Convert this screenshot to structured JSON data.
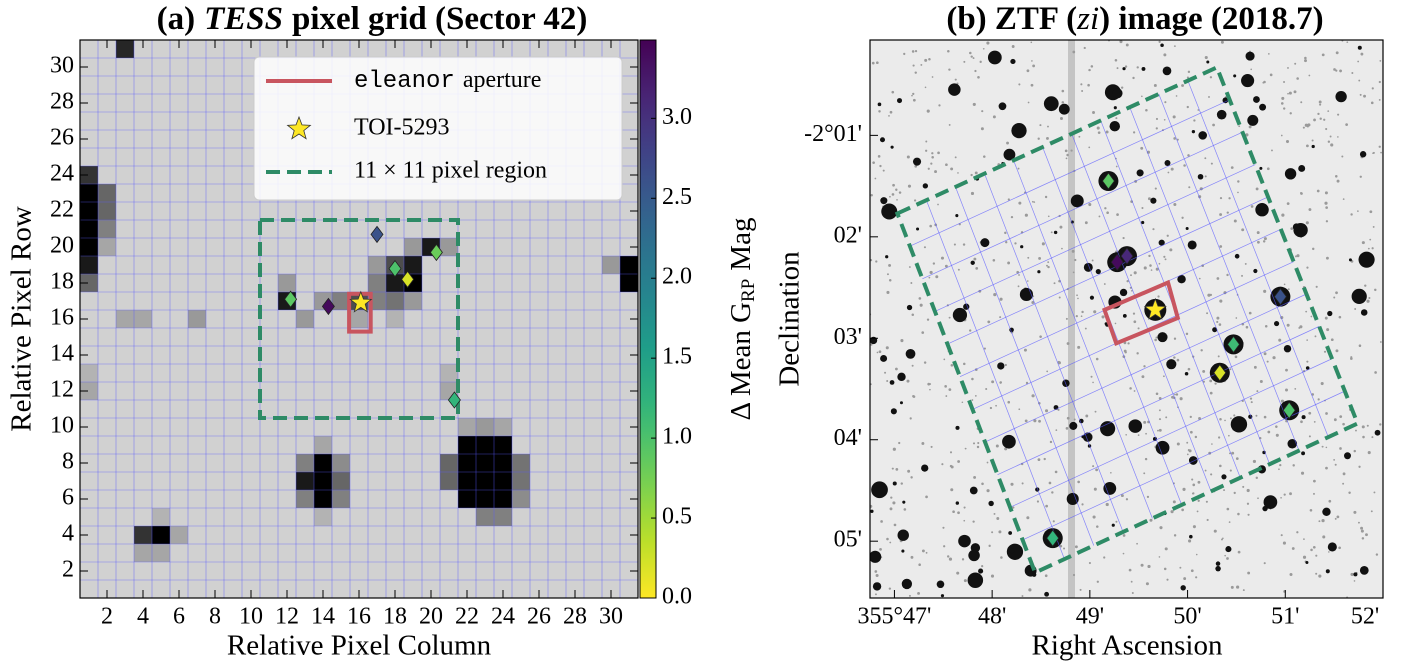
{
  "chart_data": [
    {
      "type": "heatmap",
      "title": [
        "(a)",
        "TESS",
        "pixel grid (Sector 42)"
      ],
      "xlabel": "Relative Pixel Column",
      "ylabel": "Relative Pixel Row",
      "xlim": [
        0.5,
        31.5
      ],
      "ylim": [
        0.5,
        31.5
      ],
      "xticks": [
        2,
        4,
        6,
        8,
        10,
        12,
        14,
        16,
        18,
        20,
        22,
        24,
        26,
        28,
        30
      ],
      "yticks": [
        2,
        4,
        6,
        8,
        10,
        12,
        14,
        16,
        18,
        20,
        22,
        24,
        26,
        28,
        30
      ],
      "grid": true,
      "background": 0.18,
      "vlim": [
        0,
        1
      ],
      "pixels": [
        {
          "col": 3,
          "row": 31,
          "value": 0.85
        },
        {
          "col": 1,
          "row": 24,
          "value": 0.8
        },
        {
          "col": 1,
          "row": 23,
          "value": 1
        },
        {
          "col": 1,
          "row": 22,
          "value": 1
        },
        {
          "col": 1,
          "row": 21,
          "value": 1
        },
        {
          "col": 1,
          "row": 20,
          "value": 1
        },
        {
          "col": 1,
          "row": 19,
          "value": 0.9
        },
        {
          "col": 1,
          "row": 18,
          "value": 0.6
        },
        {
          "col": 2,
          "row": 23,
          "value": 0.6
        },
        {
          "col": 2,
          "row": 22,
          "value": 0.6
        },
        {
          "col": 2,
          "row": 21,
          "value": 0.5
        },
        {
          "col": 2,
          "row": 20,
          "value": 0.35
        },
        {
          "col": 4,
          "row": 4,
          "value": 0.8
        },
        {
          "col": 5,
          "row": 4,
          "value": 1
        },
        {
          "col": 4,
          "row": 3,
          "value": 0.35
        },
        {
          "col": 5,
          "row": 3,
          "value": 0.35
        },
        {
          "col": 6,
          "row": 4,
          "value": 0.35
        },
        {
          "col": 5,
          "row": 5,
          "value": 0.3
        },
        {
          "col": 14,
          "row": 8,
          "value": 1
        },
        {
          "col": 14,
          "row": 7,
          "value": 1
        },
        {
          "col": 14,
          "row": 6,
          "value": 1
        },
        {
          "col": 13,
          "row": 7,
          "value": 0.9
        },
        {
          "col": 15,
          "row": 7,
          "value": 0.6
        },
        {
          "col": 13,
          "row": 8,
          "value": 0.5
        },
        {
          "col": 15,
          "row": 8,
          "value": 0.45
        },
        {
          "col": 13,
          "row": 6,
          "value": 0.5
        },
        {
          "col": 15,
          "row": 6,
          "value": 0.5
        },
        {
          "col": 14,
          "row": 9,
          "value": 0.35
        },
        {
          "col": 14,
          "row": 5,
          "value": 0.3
        },
        {
          "col": 22,
          "row": 9,
          "value": 1
        },
        {
          "col": 23,
          "row": 9,
          "value": 1
        },
        {
          "col": 24,
          "row": 9,
          "value": 1
        },
        {
          "col": 22,
          "row": 8,
          "value": 1
        },
        {
          "col": 23,
          "row": 8,
          "value": 1
        },
        {
          "col": 24,
          "row": 8,
          "value": 1
        },
        {
          "col": 22,
          "row": 7,
          "value": 1
        },
        {
          "col": 23,
          "row": 7,
          "value": 1
        },
        {
          "col": 24,
          "row": 7,
          "value": 1
        },
        {
          "col": 22,
          "row": 6,
          "value": 1
        },
        {
          "col": 23,
          "row": 6,
          "value": 1
        },
        {
          "col": 24,
          "row": 6,
          "value": 1
        },
        {
          "col": 21,
          "row": 8,
          "value": 0.6
        },
        {
          "col": 21,
          "row": 7,
          "value": 0.6
        },
        {
          "col": 25,
          "row": 8,
          "value": 0.55
        },
        {
          "col": 25,
          "row": 7,
          "value": 0.55
        },
        {
          "col": 25,
          "row": 6,
          "value": 0.45
        },
        {
          "col": 23,
          "row": 5,
          "value": 0.5
        },
        {
          "col": 24,
          "row": 5,
          "value": 0.5
        },
        {
          "col": 23,
          "row": 10,
          "value": 0.4
        },
        {
          "col": 24,
          "row": 10,
          "value": 0.35
        },
        {
          "col": 22,
          "row": 10,
          "value": 0.35
        },
        {
          "col": 31,
          "row": 19,
          "value": 1
        },
        {
          "col": 31,
          "row": 18,
          "value": 1
        },
        {
          "col": 30,
          "row": 19,
          "value": 0.4
        },
        {
          "col": 12,
          "row": 17,
          "value": 0.9
        },
        {
          "col": 12,
          "row": 18,
          "value": 0.4
        },
        {
          "col": 13,
          "row": 16,
          "value": 0.4
        },
        {
          "col": 14,
          "row": 17,
          "value": 0.4
        },
        {
          "col": 15,
          "row": 17,
          "value": 0.5
        },
        {
          "col": 16,
          "row": 17,
          "value": 0.7
        },
        {
          "col": 16,
          "row": 16,
          "value": 0.35
        },
        {
          "col": 17,
          "row": 17,
          "value": 0.5
        },
        {
          "col": 18,
          "row": 17,
          "value": 0.55
        },
        {
          "col": 17,
          "row": 18,
          "value": 0.5
        },
        {
          "col": 18,
          "row": 18,
          "value": 0.9
        },
        {
          "col": 19,
          "row": 18,
          "value": 1
        },
        {
          "col": 19,
          "row": 19,
          "value": 0.9
        },
        {
          "col": 18,
          "row": 19,
          "value": 0.7
        },
        {
          "col": 17,
          "row": 19,
          "value": 0.4
        },
        {
          "col": 20,
          "row": 20,
          "value": 0.9
        },
        {
          "col": 19,
          "row": 20,
          "value": 0.4
        },
        {
          "col": 21,
          "row": 20,
          "value": 0.4
        },
        {
          "col": 19,
          "row": 17,
          "value": 0.4
        },
        {
          "col": 18,
          "row": 16,
          "value": 0.3
        },
        {
          "col": 3,
          "row": 16,
          "value": 0.35
        },
        {
          "col": 4,
          "row": 16,
          "value": 0.35
        },
        {
          "col": 7,
          "row": 16,
          "value": 0.4
        },
        {
          "col": 21,
          "row": 12,
          "value": 0.35
        },
        {
          "col": 21,
          "row": 13,
          "value": 0.3
        },
        {
          "col": 1,
          "row": 12,
          "value": 0.35
        },
        {
          "col": 1,
          "row": 13,
          "value": 0.3
        }
      ],
      "colorbar": {
        "label": [
          "Δ Mean G",
          "RP",
          "Mag"
        ],
        "clim": [
          0,
          3.49
        ],
        "colormap": "viridis_r",
        "ticks": [
          {
            "value": 0,
            "label": "0.0"
          },
          {
            "value": 0.5,
            "label": "0.5"
          },
          {
            "value": 1,
            "label": "1.0"
          },
          {
            "value": 1.5,
            "label": "1.5"
          },
          {
            "value": 2,
            "label": "2.0"
          },
          {
            "value": 2.5,
            "label": "2.5"
          },
          {
            "value": 3,
            "label": "3.0"
          }
        ]
      },
      "legend": "upper right",
      "aperture": {
        "name": [
          "eleanor",
          "aperture"
        ],
        "color": "#c8555f",
        "x": [
          15.45,
          16.65
        ],
        "y": [
          15.3,
          17.4
        ]
      },
      "target": {
        "name": "TOI-5293",
        "color": "#fde725",
        "x": 16.1,
        "y": 16.9
      },
      "region": {
        "name": "11 × 11 pixel region",
        "color": "#2e8b66",
        "x": [
          10.5,
          21.5
        ],
        "y": [
          10.5,
          21.5
        ]
      },
      "stars": {
        "x": [
          12.2,
          14.3,
          18.0,
          18.7,
          17.0,
          20.3,
          21.3
        ],
        "y": [
          17.1,
          16.7,
          18.8,
          18.2,
          20.7,
          19.7,
          11.5
        ],
        "values": [
          0.9,
          3.4,
          1.0,
          0.2,
          2.6,
          0.8,
          1.2
        ]
      }
    },
    {
      "type": "sky-image",
      "title": [
        "(b) ZTF (",
        "zi",
        ") image (2018.7)"
      ],
      "xlabel": "Right Ascension",
      "ylabel": "Declination",
      "xlim": [
        21346.75,
        21352
      ],
      "ylim": [
        -125.56,
        -120.06
      ],
      "xticks": [
        {
          "value": 21347,
          "label": "355°47'"
        },
        {
          "value": 21348,
          "label": "48'"
        },
        {
          "value": 21349,
          "label": "49'"
        },
        {
          "value": 21350,
          "label": "50'"
        },
        {
          "value": 21351,
          "label": "51'"
        },
        {
          "value": 21352,
          "label": "52'"
        }
      ],
      "yticks": [
        {
          "value": -121,
          "label": "-2°01'"
        },
        {
          "value": -122,
          "label": "02'"
        },
        {
          "value": -123,
          "label": "03'"
        },
        {
          "value": -124,
          "label": "04'"
        },
        {
          "value": -125,
          "label": "05'"
        }
      ],
      "region": {
        "color": "#2e8b66",
        "divisions": 11,
        "ra": [
          21347.03,
          21350.3,
          21351.74,
          21348.44
        ],
        "dec": [
          -121.77,
          -120.33,
          -123.84,
          -125.31
        ]
      },
      "aperture": {
        "color": "#c8555f",
        "ra": [
          21349.15,
          21349.8,
          21349.9,
          21349.27
        ],
        "dec": [
          -122.72,
          -122.45,
          -122.8,
          -123.05
        ]
      },
      "target": {
        "color": "#fde725",
        "ra": 21349.67,
        "dec": -122.72
      },
      "stars": {
        "ra": [
          21349.19,
          21349.28,
          21349.38,
          21350.95,
          21350.47,
          21350.33,
          21351.04,
          21348.62
        ],
        "dec": [
          -121.45,
          -122.25,
          -122.19,
          -122.59,
          -123.06,
          -123.34,
          -123.71,
          -124.97
        ],
        "values": [
          0.9,
          3.4,
          3.1,
          2.6,
          1.1,
          0.2,
          1.0,
          1.2
        ]
      }
    }
  ]
}
